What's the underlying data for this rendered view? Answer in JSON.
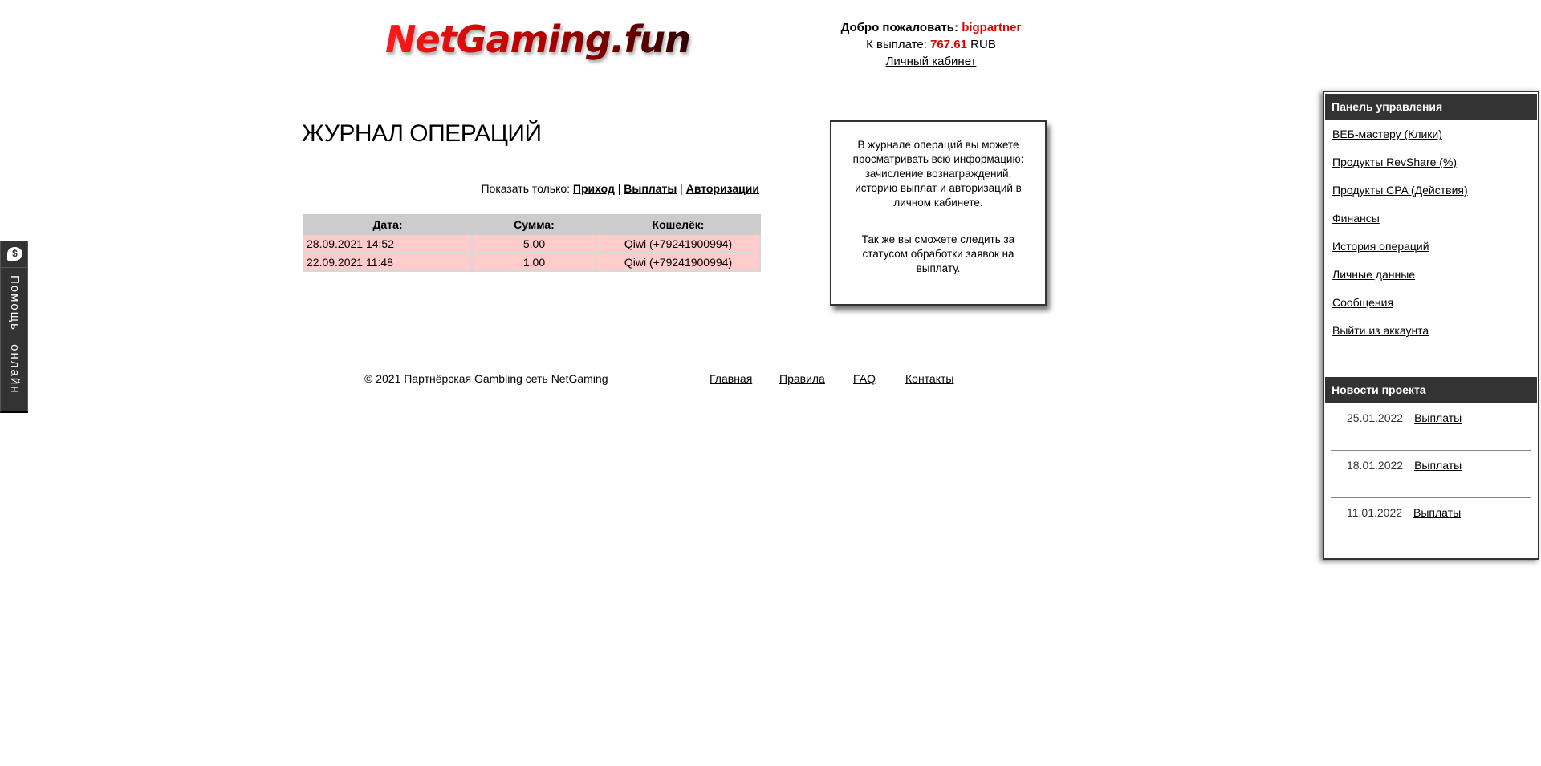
{
  "header": {
    "logo_text": "NetGaming.fun",
    "welcome_label": "Добро пожаловать:",
    "username": "bigpartner",
    "payout_label": "К выплате:",
    "payout_amount": "767.61",
    "currency": "RUB",
    "cabinet_link": "Личный кабинет"
  },
  "page": {
    "title": "ЖУРНАЛ ОПЕРАЦИЙ",
    "filter_label": "Показать только:",
    "filters": [
      "Приход",
      "Выплаты",
      "Авторизации"
    ],
    "separator": "|"
  },
  "table": {
    "headers": [
      "Дата:",
      "Сумма:",
      "Кошелёк:"
    ],
    "rows": [
      [
        "28.09.2021 14:52",
        "5.00",
        "Qiwi (+79241900994)"
      ],
      [
        "22.09.2021 11:48",
        "1.00",
        "Qiwi (+79241900994)"
      ]
    ]
  },
  "info": {
    "p1": "В журнале операций вы можете просматривать всю информацию: зачисление вознаграждений, историю выплат и авторизаций в личном кабинете.",
    "p2": "Так же вы сможете следить за статусом обработки заявок на выплату."
  },
  "sidebar": {
    "panel_title": "Панель управления",
    "items": [
      "ВЕБ-мастеру (Клики)",
      "Продукты RevShare (%)",
      "Продукты CPA (Действия)",
      "Финансы",
      "История операций",
      "Личные данные",
      "Сообщения",
      "Выйти из аккаунта"
    ],
    "news_title": "Новости проекта",
    "news": [
      {
        "date": "25.01.2022",
        "title": "Выплаты"
      },
      {
        "date": "18.01.2022",
        "title": "Выплаты"
      },
      {
        "date": "11.01.2022",
        "title": "Выплаты"
      }
    ]
  },
  "footer": {
    "copyright": "© 2021 Партнёрская Gambling сеть NetGaming",
    "links": [
      "Главная",
      "Правила",
      "FAQ",
      "Контакты"
    ]
  },
  "help": {
    "label": "Помощь онлайн",
    "icon": "chat-dollar-icon"
  },
  "colors": {
    "accent": "#e00000",
    "row_bg": "#ffcccc",
    "header_bg": "#cccccc",
    "panel_bg": "#333333"
  }
}
